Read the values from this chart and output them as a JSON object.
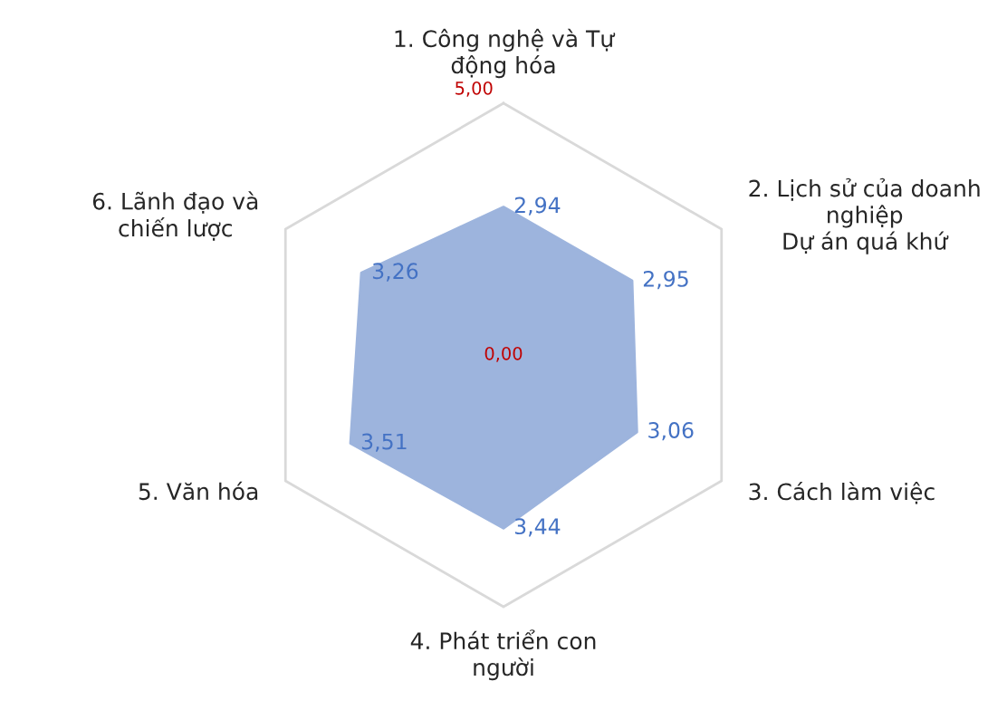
{
  "chart_data": {
    "type": "radar",
    "categories": [
      "1. Công nghệ và Tự\nđộng hóa",
      "2. Lịch sử của doanh\nnghiệp\nDự án quá khứ",
      "3. Cách làm việc",
      "4. Phát triển con\nngười",
      "5. Văn hóa",
      "6. Lãnh đạo và\nchiến lược"
    ],
    "series": [
      {
        "color": "#9db4dd",
        "values": [
          2.94,
          2.95,
          3.06,
          3.44,
          3.51,
          3.26
        ],
        "value_labels": [
          "2,94",
          "2,95",
          "3,06",
          "3,44",
          "3,51",
          "3,26"
        ]
      }
    ],
    "ylim": [
      0,
      5
    ],
    "yticks": [
      {
        "value": 0,
        "label": "0,00"
      },
      {
        "value": 5,
        "label": "5,00"
      }
    ],
    "grid": true
  }
}
